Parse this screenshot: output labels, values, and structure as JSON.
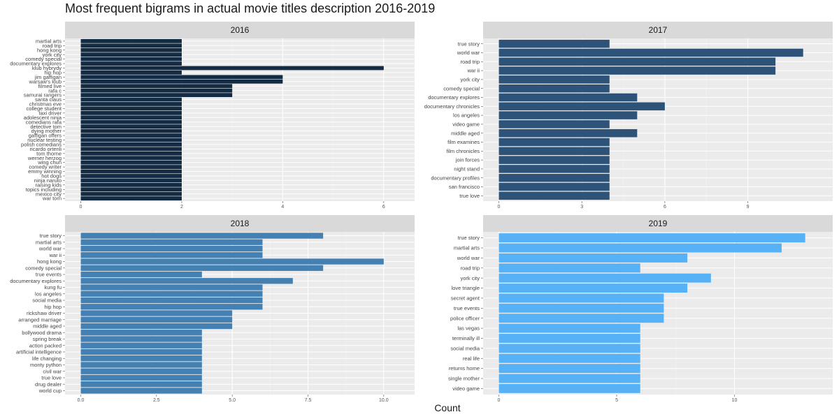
{
  "title": "Most frequent bigrams in actual movie titles description 2016-2019",
  "xlabel": "Count",
  "chart_data": [
    {
      "type": "bar",
      "orientation": "horizontal",
      "panel": "2016",
      "color": "#132b43",
      "xlim": [
        0,
        6.3
      ],
      "xticks": [
        0,
        2,
        4,
        6
      ],
      "xtick_labels": [
        "0",
        "2",
        "4",
        "6"
      ],
      "categories": [
        "martial arts",
        "road trip",
        "hong kong",
        "york city",
        "comedy special",
        "documentary explores",
        "klub hybrydy",
        "hip hop",
        "jim gaffigan",
        "warsaw's klub",
        "filmed live",
        "rafa c",
        "samurai rangers",
        "santa claus",
        "christmas eve",
        "college student",
        "taxi driver",
        "adolescent ninja",
        "comedians rafa",
        "detective tom",
        "dying mother",
        "gaffigan offers",
        "nuclear testing",
        "polish comedians",
        "ricardo ortenli",
        "tom thorne",
        "werner herzog",
        "wing chun",
        "comedy writer",
        "emmy winning",
        "hot dogs",
        "ninja naruto",
        "raising kids",
        "topics including",
        "mexico city",
        "war torn"
      ],
      "values": [
        2,
        2,
        2,
        2,
        2,
        2,
        6,
        2,
        4,
        4,
        3,
        3,
        3,
        2,
        2,
        2,
        2,
        2,
        2,
        2,
        2,
        2,
        2,
        2,
        2,
        2,
        2,
        2,
        2,
        2,
        2,
        2,
        2,
        2,
        2,
        2
      ]
    },
    {
      "type": "bar",
      "orientation": "horizontal",
      "panel": "2017",
      "color": "#2d5379",
      "xlim": [
        0,
        11.5
      ],
      "xticks": [
        0,
        3,
        6,
        9
      ],
      "xtick_labels": [
        "0",
        "3",
        "6",
        "9"
      ],
      "categories": [
        "true story",
        "world war",
        "road trip",
        "war ii",
        "york city",
        "comedy special",
        "documentary explores",
        "documentary chronicles",
        "los angeles",
        "video game",
        "middle aged",
        "film examines",
        "film chronicles",
        "join forces",
        "night stand",
        "documentary profiles",
        "san francisco",
        "true love"
      ],
      "values": [
        4,
        11,
        10,
        10,
        4,
        4,
        5,
        6,
        5,
        4,
        5,
        4,
        4,
        4,
        4,
        4,
        4,
        4
      ]
    },
    {
      "type": "bar",
      "orientation": "horizontal",
      "panel": "2018",
      "color": "#4580b3",
      "xlim": [
        0,
        10.5
      ],
      "xticks": [
        0,
        2.5,
        5,
        7.5,
        10
      ],
      "xtick_labels": [
        "0.0",
        "2.5",
        "5.0",
        "7.5",
        "10.0"
      ],
      "categories": [
        "true story",
        "martial arts",
        "world war",
        "war ii",
        "hong kong",
        "comedy special",
        "true events",
        "documentary explores",
        "kung fu",
        "los angeles",
        "social media",
        "hip hop",
        "rickshaw driver",
        "arranged marriage",
        "middle aged",
        "bollywood drama",
        "spring break",
        "action packed",
        "artificial intelligence",
        "life changing",
        "monty python",
        "civil war",
        "true love",
        "drug dealer",
        "world cup"
      ],
      "values": [
        8,
        6,
        6,
        6,
        10,
        8,
        4,
        7,
        6,
        6,
        6,
        6,
        5,
        5,
        5,
        4,
        4,
        4,
        4,
        4,
        4,
        4,
        4,
        4,
        4
      ]
    },
    {
      "type": "bar",
      "orientation": "horizontal",
      "panel": "2019",
      "color": "#56b1f7",
      "xlim": [
        0,
        13.5
      ],
      "xticks": [
        0,
        5,
        10
      ],
      "xtick_labels": [
        "0",
        "5",
        "10"
      ],
      "categories": [
        "true story",
        "martial arts",
        "world war",
        "road trip",
        "york city",
        "love triangle",
        "secret agent",
        "true events",
        "police officer",
        "las vegas",
        "terminally ill",
        "social media",
        "real life",
        "returns home",
        "single mother",
        "video game"
      ],
      "values": [
        13,
        12,
        8,
        6,
        9,
        8,
        7,
        7,
        7,
        6,
        6,
        6,
        6,
        6,
        6,
        6
      ]
    }
  ]
}
